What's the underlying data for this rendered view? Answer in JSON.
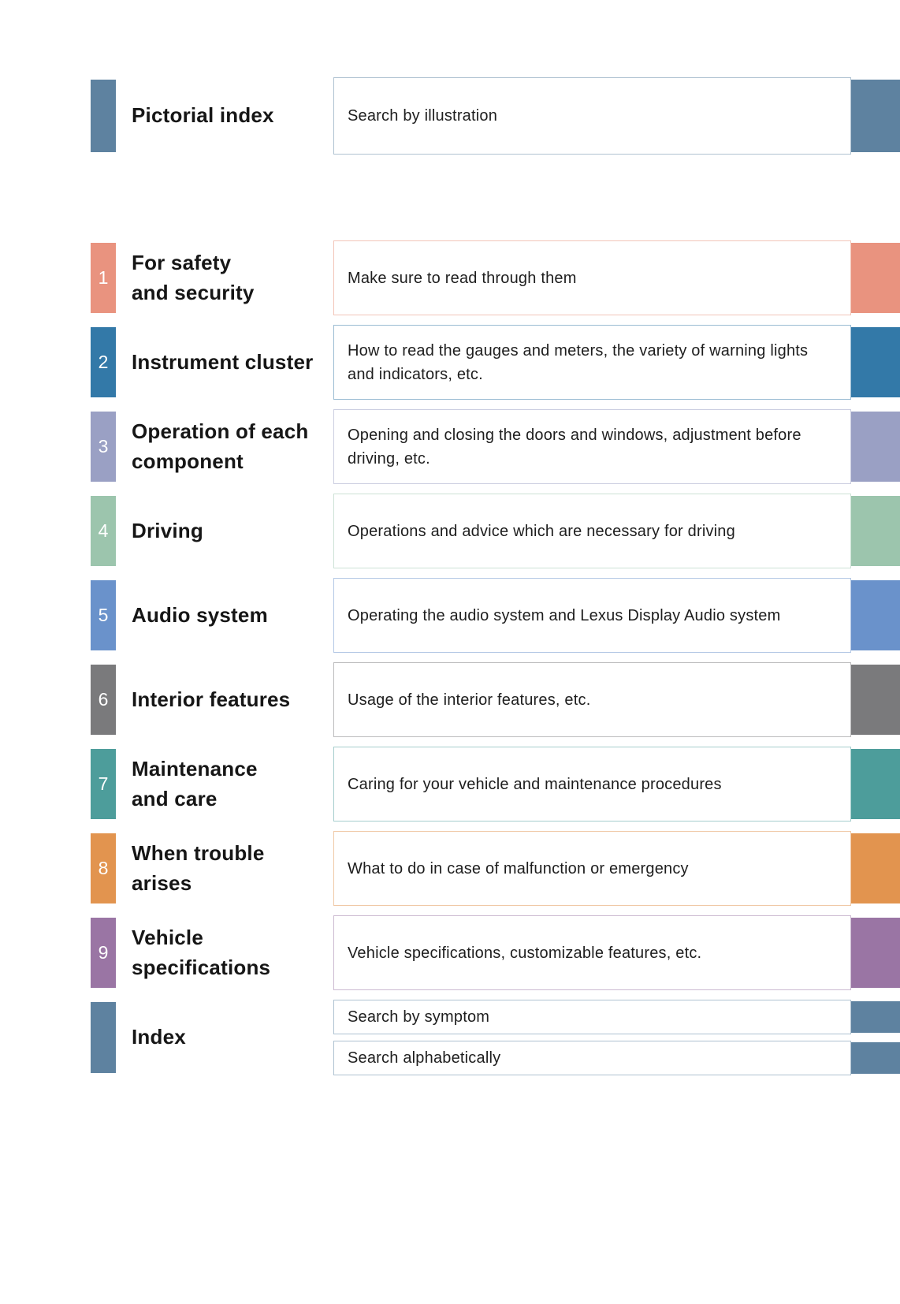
{
  "pictorial": {
    "title": "Pictorial index",
    "description": "Search by illustration",
    "color": "#5E82A0",
    "border_color": "#AFC2D1"
  },
  "sections": [
    {
      "number": "1",
      "title": "For safety\nand security",
      "description": "Make sure to read through them",
      "color": "#E9937F",
      "border_color": "#F2C5B8"
    },
    {
      "number": "2",
      "title": "Instrument cluster",
      "description": "How to read the gauges and meters, the variety of warning lights and indicators, etc.",
      "color": "#3379A8",
      "border_color": "#9ABCD3"
    },
    {
      "number": "3",
      "title": "Operation of each\ncomponent",
      "description": "Opening and closing the doors and windows, adjustment before driving, etc.",
      "color": "#9AA0C4",
      "border_color": "#CCCFE1"
    },
    {
      "number": "4",
      "title": "Driving",
      "description": "Operations and advice which are necessary for driving",
      "color": "#9CC5AD",
      "border_color": "#CDE2D6"
    },
    {
      "number": "5",
      "title": "Audio system",
      "description": "Operating the audio system and Lexus Display Audio system",
      "color": "#6A92CB",
      "border_color": "#B4C8E5"
    },
    {
      "number": "6",
      "title": "Interior features",
      "description": "Usage of the interior features, etc.",
      "color": "#7A7A7C",
      "border_color": "#BCBCBD"
    },
    {
      "number": "7",
      "title": "Maintenance\nand care",
      "description": "Caring for your vehicle and maintenance procedures",
      "color": "#4D9D9B",
      "border_color": "#A6CECD"
    },
    {
      "number": "8",
      "title": "When trouble\narises",
      "description": "What to do in case of malfunction or emergency",
      "color": "#E2944F",
      "border_color": "#F0C9A7"
    },
    {
      "number": "9",
      "title": "Vehicle\nspecifications",
      "description": "Vehicle specifications, customizable features, etc.",
      "color": "#9A75A4",
      "border_color": "#CCBAD1"
    }
  ],
  "index": {
    "title": "Index",
    "color": "#5E82A0",
    "border_color": "#AFC2D1",
    "items": [
      {
        "label": "Search by symptom"
      },
      {
        "label": "Search alphabetically"
      }
    ]
  }
}
